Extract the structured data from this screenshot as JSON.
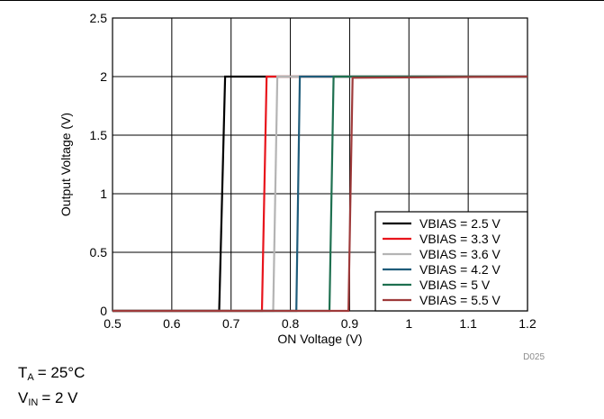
{
  "chart_data": {
    "type": "line",
    "xlabel": "ON Voltage (V)",
    "ylabel": "Output Voltage (V)",
    "xlim": [
      0.5,
      1.2
    ],
    "ylim": [
      0,
      2.5
    ],
    "xticks": [
      "0.5",
      "0.6",
      "0.7",
      "0.8",
      "0.9",
      "1",
      "1.1",
      "1.2"
    ],
    "yticks": [
      "0",
      "0.5",
      "1",
      "1.5",
      "2",
      "2.5"
    ],
    "grid": true,
    "legend_position": "bottom-right",
    "figure_id": "D025",
    "series": [
      {
        "name": "VBIAS = 2.5 V",
        "color": "#000000",
        "points": [
          [
            0.5,
            0
          ],
          [
            0.68,
            0
          ],
          [
            0.69,
            2.0
          ],
          [
            1.2,
            2.0
          ]
        ]
      },
      {
        "name": "VBIAS = 3.3 V",
        "color": "#e8141c",
        "points": [
          [
            0.5,
            0
          ],
          [
            0.752,
            0
          ],
          [
            0.76,
            2.0
          ],
          [
            1.2,
            2.0
          ]
        ]
      },
      {
        "name": "VBIAS = 3.6 V",
        "color": "#b4b4b4",
        "points": [
          [
            0.5,
            0
          ],
          [
            0.771,
            0
          ],
          [
            0.778,
            2.0
          ],
          [
            1.2,
            2.0
          ]
        ]
      },
      {
        "name": "VBIAS = 4.2 V",
        "color": "#1f5c7a",
        "points": [
          [
            0.5,
            0
          ],
          [
            0.81,
            0
          ],
          [
            0.816,
            2.0
          ],
          [
            1.2,
            2.0
          ]
        ]
      },
      {
        "name": "VBIAS = 5 V",
        "color": "#1e7050",
        "points": [
          [
            0.5,
            0
          ],
          [
            0.866,
            0
          ],
          [
            0.873,
            2.0
          ],
          [
            1.2,
            2.0
          ]
        ]
      },
      {
        "name": "VBIAS = 5.5 V",
        "color": "#9e3a3a",
        "points": [
          [
            0.5,
            0
          ],
          [
            0.898,
            0
          ],
          [
            0.905,
            1.99
          ],
          [
            1.2,
            2.0
          ]
        ]
      }
    ]
  },
  "annotations": {
    "ta_symbol": "T",
    "ta_sub": "A",
    "ta_value": "= 25°C",
    "vin_symbol": "V",
    "vin_sub": "IN",
    "vin_value": "= 2 V"
  }
}
